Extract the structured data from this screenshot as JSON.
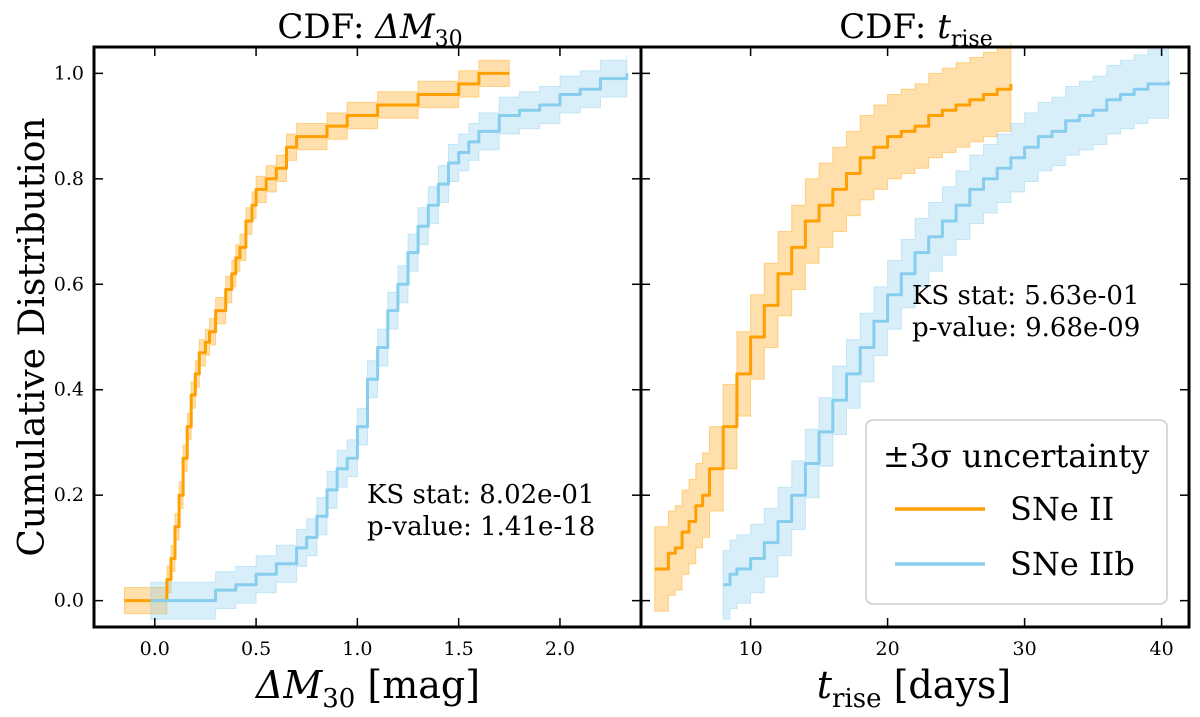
{
  "chart_data": [
    {
      "type": "line",
      "panel": "left",
      "title_main": "CDF: ",
      "title_symbol": "ΔM",
      "title_sub": "30",
      "xlabel_symbol": "ΔM",
      "xlabel_sub": "30",
      "xlabel_unit": " [mag]",
      "ylabel": "Cumulative Distribution",
      "xlim": [
        -0.3,
        2.4
      ],
      "ylim": [
        -0.05,
        1.05
      ],
      "xticks": [
        0.0,
        0.5,
        1.0,
        1.5,
        2.0
      ],
      "xtick_labels": [
        "0.0",
        "0.5",
        "1.0",
        "1.5",
        "2.0"
      ],
      "yticks": [
        0.0,
        0.2,
        0.4,
        0.6,
        0.8,
        1.0
      ],
      "ytick_labels": [
        "0.0",
        "0.2",
        "0.4",
        "0.6",
        "0.8",
        "1.0"
      ],
      "annotation": [
        "KS stat:  8.02e-01",
        "p-value:  1.41e-18"
      ],
      "series": [
        {
          "name": "SNe II",
          "color": "#ff9f00",
          "x": [
            -0.15,
            0.04,
            0.06,
            0.08,
            0.1,
            0.12,
            0.14,
            0.16,
            0.18,
            0.2,
            0.22,
            0.25,
            0.27,
            0.3,
            0.33,
            0.35,
            0.38,
            0.4,
            0.42,
            0.45,
            0.48,
            0.5,
            0.53,
            0.55,
            0.6,
            0.65,
            0.7,
            0.75,
            0.8,
            0.85,
            0.9,
            0.95,
            1.0,
            1.1,
            1.2,
            1.3,
            1.4,
            1.5,
            1.6,
            1.75
          ],
          "y": [
            0.0,
            0.0,
            0.04,
            0.08,
            0.14,
            0.2,
            0.27,
            0.33,
            0.39,
            0.43,
            0.47,
            0.49,
            0.51,
            0.55,
            0.55,
            0.59,
            0.62,
            0.65,
            0.67,
            0.72,
            0.75,
            0.78,
            0.78,
            0.8,
            0.82,
            0.86,
            0.88,
            0.88,
            0.88,
            0.9,
            0.9,
            0.92,
            0.92,
            0.94,
            0.94,
            0.96,
            0.96,
            0.98,
            1.0,
            1.0
          ],
          "band": 0.025
        },
        {
          "name": "SNe IIb",
          "color": "#87cdee",
          "x": [
            -0.02,
            0.2,
            0.3,
            0.4,
            0.5,
            0.6,
            0.7,
            0.75,
            0.8,
            0.85,
            0.9,
            0.95,
            1.0,
            1.05,
            1.1,
            1.15,
            1.2,
            1.25,
            1.3,
            1.35,
            1.4,
            1.45,
            1.5,
            1.55,
            1.6,
            1.7,
            1.8,
            1.9,
            2.0,
            2.1,
            2.2,
            2.33
          ],
          "y": [
            0.0,
            0.0,
            0.02,
            0.03,
            0.05,
            0.07,
            0.1,
            0.12,
            0.16,
            0.21,
            0.25,
            0.27,
            0.33,
            0.42,
            0.48,
            0.55,
            0.6,
            0.66,
            0.71,
            0.75,
            0.79,
            0.83,
            0.85,
            0.87,
            0.89,
            0.92,
            0.93,
            0.94,
            0.96,
            0.97,
            0.99,
            1.0
          ],
          "band": 0.035
        }
      ]
    },
    {
      "type": "line",
      "panel": "right",
      "title_main": "CDF: ",
      "title_symbol": "t",
      "title_sub": "rise",
      "xlabel_symbol": "t",
      "xlabel_sub": "rise",
      "xlabel_unit": " [days]",
      "xlim": [
        2.0,
        42.0
      ],
      "ylim": [
        -0.05,
        1.05
      ],
      "xticks": [
        10,
        20,
        30,
        40
      ],
      "xtick_labels": [
        "10",
        "20",
        "30",
        "40"
      ],
      "yticks": [
        0.0,
        0.2,
        0.4,
        0.6,
        0.8,
        1.0
      ],
      "annotation": [
        "KS stat:  5.63e-01",
        "p-value:  9.68e-09"
      ],
      "legend": {
        "title": "±3σ uncertainty",
        "location": "lower-right",
        "entries": [
          "SNe II",
          "SNe IIb"
        ]
      },
      "series": [
        {
          "name": "SNe II",
          "color": "#ff9f00",
          "x": [
            3.0,
            3.7,
            4.0,
            4.5,
            5.0,
            5.5,
            6.0,
            6.5,
            7.0,
            8.0,
            9.0,
            10.0,
            11.0,
            12.0,
            13.0,
            14.0,
            15.0,
            16.0,
            17.0,
            18.0,
            19.0,
            20.0,
            21.0,
            22.0,
            23.0,
            24.0,
            25.0,
            26.0,
            27.0,
            28.0,
            29.0
          ],
          "y": [
            0.06,
            0.06,
            0.09,
            0.1,
            0.13,
            0.15,
            0.18,
            0.2,
            0.25,
            0.33,
            0.43,
            0.5,
            0.56,
            0.62,
            0.67,
            0.72,
            0.75,
            0.78,
            0.81,
            0.84,
            0.86,
            0.88,
            0.89,
            0.9,
            0.92,
            0.93,
            0.94,
            0.95,
            0.96,
            0.97,
            0.98
          ],
          "band": 0.08
        },
        {
          "name": "SNe IIb",
          "color": "#87cdee",
          "x": [
            8.0,
            8.5,
            9.0,
            10.0,
            11.0,
            12.0,
            13.0,
            14.0,
            15.0,
            16.0,
            17.0,
            18.0,
            19.0,
            20.0,
            21.0,
            22.0,
            23.0,
            24.0,
            25.0,
            26.0,
            27.0,
            28.0,
            29.0,
            30.0,
            31.0,
            32.0,
            33.0,
            34.0,
            35.0,
            36.0,
            37.0,
            38.0,
            39.0,
            40.5
          ],
          "y": [
            0.03,
            0.05,
            0.06,
            0.08,
            0.11,
            0.15,
            0.2,
            0.26,
            0.32,
            0.38,
            0.43,
            0.48,
            0.53,
            0.58,
            0.62,
            0.66,
            0.69,
            0.72,
            0.75,
            0.78,
            0.8,
            0.82,
            0.84,
            0.86,
            0.88,
            0.89,
            0.91,
            0.92,
            0.93,
            0.95,
            0.96,
            0.97,
            0.98,
            0.985
          ],
          "band": 0.065
        }
      ]
    }
  ]
}
